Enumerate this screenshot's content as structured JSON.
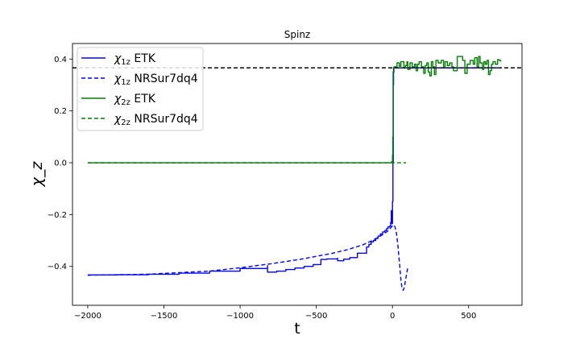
{
  "chart_data": {
    "type": "line",
    "title": "Spinz",
    "xlabel": "t",
    "ylabel": "χ_z",
    "xlim": [
      -2100,
      850
    ],
    "ylim": [
      -0.55,
      0.46
    ],
    "xticks": [
      -2000,
      -1500,
      -1000,
      -500,
      0,
      500
    ],
    "xtick_labels": [
      "−2000",
      "−1500",
      "−1000",
      "−500",
      "0",
      "500"
    ],
    "yticks": [
      -0.4,
      -0.2,
      0.0,
      0.2,
      0.4
    ],
    "ytick_labels": [
      "−0.4",
      "−0.2",
      "0.0",
      "0.2",
      "0.4"
    ],
    "grid": false,
    "legend_position": "top-left",
    "legend": [
      {
        "sym": "χ",
        "sub": "1z",
        "rest": " ETK"
      },
      {
        "sym": "χ",
        "sub": "1z",
        "rest": " NRSur7dq4"
      },
      {
        "sym": "χ",
        "sub": "2z",
        "rest": " ETK"
      },
      {
        "sym": "χ",
        "sub": "2z",
        "rest": " NRSur7dq4"
      }
    ],
    "hline": {
      "y": 0.366,
      "color": "#000000",
      "style": "dashed"
    },
    "series": [
      {
        "color": "#0000ff",
        "style": "solid",
        "step": true,
        "points": [
          [
            -2000,
            -0.433
          ],
          [
            -1800,
            -0.432
          ],
          [
            -1600,
            -0.43
          ],
          [
            -1400,
            -0.426
          ],
          [
            -1200,
            -0.418
          ],
          [
            -1000,
            -0.408
          ],
          [
            -820,
            -0.397
          ],
          [
            -820,
            -0.422
          ],
          [
            -760,
            -0.418
          ],
          [
            -700,
            -0.412
          ],
          [
            -640,
            -0.406
          ],
          [
            -580,
            -0.4
          ],
          [
            -520,
            -0.393
          ],
          [
            -470,
            -0.388
          ],
          [
            -470,
            -0.373
          ],
          [
            -430,
            -0.371
          ],
          [
            -360,
            -0.368
          ],
          [
            -360,
            -0.378
          ],
          [
            -320,
            -0.372
          ],
          [
            -280,
            -0.366
          ],
          [
            -230,
            -0.361
          ],
          [
            -230,
            -0.349
          ],
          [
            -170,
            -0.343
          ],
          [
            -170,
            -0.325
          ],
          [
            -155,
            -0.315
          ],
          [
            -140,
            -0.305
          ],
          [
            -125,
            -0.3
          ],
          [
            -110,
            -0.292
          ],
          [
            -95,
            -0.283
          ],
          [
            -80,
            -0.275
          ],
          [
            -65,
            -0.267
          ],
          [
            -50,
            -0.262
          ],
          [
            -40,
            -0.255
          ],
          [
            -30,
            -0.248
          ],
          [
            -20,
            -0.245
          ],
          [
            -12,
            -0.23
          ],
          [
            -8,
            -0.185
          ],
          [
            -4,
            -0.235
          ],
          [
            0,
            -0.15
          ],
          [
            3,
            0.0
          ],
          [
            5,
            0.3
          ],
          [
            7,
            0.366
          ],
          [
            700,
            0.366
          ]
        ]
      },
      {
        "color": "#0000ff",
        "style": "dashed",
        "step": false,
        "points": [
          [
            -2000,
            -0.434
          ],
          [
            -1600,
            -0.43
          ],
          [
            -1200,
            -0.418
          ],
          [
            -1000,
            -0.405
          ],
          [
            -800,
            -0.39
          ],
          [
            -600,
            -0.372
          ],
          [
            -400,
            -0.35
          ],
          [
            -300,
            -0.336
          ],
          [
            -200,
            -0.318
          ],
          [
            -150,
            -0.305
          ],
          [
            -100,
            -0.29
          ],
          [
            -60,
            -0.276
          ],
          [
            -30,
            -0.263
          ],
          [
            -10,
            -0.25
          ],
          [
            5,
            -0.24
          ],
          [
            15,
            -0.245
          ],
          [
            25,
            -0.268
          ],
          [
            35,
            -0.315
          ],
          [
            45,
            -0.38
          ],
          [
            55,
            -0.45
          ],
          [
            62,
            -0.482
          ],
          [
            70,
            -0.492
          ],
          [
            78,
            -0.48
          ],
          [
            88,
            -0.445
          ],
          [
            100,
            -0.405
          ]
        ]
      },
      {
        "color": "#008000",
        "style": "solid",
        "step": true,
        "points": [
          [
            -2000,
            0.0
          ],
          [
            -10,
            0.0
          ],
          [
            -5,
            0.004
          ],
          [
            0,
            0.03
          ],
          [
            2,
            0.1
          ],
          [
            4,
            0.35
          ],
          [
            10,
            0.37
          ],
          [
            30,
            0.385
          ],
          [
            45,
            0.372
          ],
          [
            55,
            0.39
          ],
          [
            75,
            0.365
          ],
          [
            85,
            0.375
          ],
          [
            95,
            0.39
          ],
          [
            100,
            0.36
          ],
          [
            115,
            0.385
          ],
          [
            130,
            0.37
          ],
          [
            145,
            0.38
          ],
          [
            155,
            0.355
          ],
          [
            165,
            0.38
          ],
          [
            175,
            0.39
          ],
          [
            190,
            0.37
          ],
          [
            205,
            0.345
          ],
          [
            215,
            0.375
          ],
          [
            225,
            0.385
          ],
          [
            235,
            0.35
          ],
          [
            245,
            0.335
          ],
          [
            255,
            0.39
          ],
          [
            265,
            0.37
          ],
          [
            275,
            0.34
          ],
          [
            285,
            0.395
          ],
          [
            300,
            0.385
          ],
          [
            320,
            0.395
          ],
          [
            335,
            0.368
          ],
          [
            345,
            0.39
          ],
          [
            360,
            0.375
          ],
          [
            375,
            0.385
          ],
          [
            390,
            0.37
          ],
          [
            400,
            0.355
          ],
          [
            425,
            0.41
          ],
          [
            460,
            0.395
          ],
          [
            475,
            0.345
          ],
          [
            490,
            0.38
          ],
          [
            510,
            0.395
          ],
          [
            530,
            0.38
          ],
          [
            540,
            0.405
          ],
          [
            555,
            0.37
          ],
          [
            565,
            0.41
          ],
          [
            575,
            0.385
          ],
          [
            590,
            0.36
          ],
          [
            600,
            0.39
          ],
          [
            610,
            0.38
          ],
          [
            620,
            0.395
          ],
          [
            630,
            0.34
          ],
          [
            640,
            0.355
          ],
          [
            650,
            0.38
          ],
          [
            660,
            0.39
          ],
          [
            675,
            0.38
          ],
          [
            690,
            0.398
          ],
          [
            700,
            0.395
          ],
          [
            710,
            0.39
          ]
        ]
      },
      {
        "color": "#008000",
        "style": "dashed",
        "step": false,
        "points": [
          [
            -2000,
            0.0
          ],
          [
            0,
            0.0
          ],
          [
            90,
            0.0
          ]
        ]
      }
    ]
  }
}
